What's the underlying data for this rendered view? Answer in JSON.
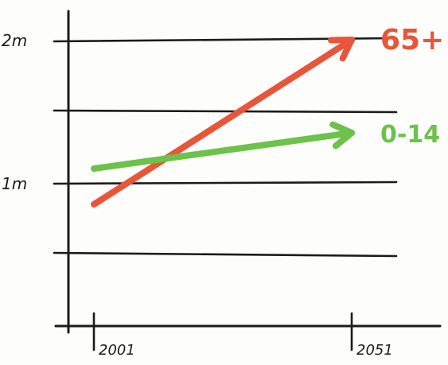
{
  "chart_data": {
    "type": "line",
    "title": "",
    "xlabel": "",
    "ylabel": "",
    "x_ticks": [
      "2001",
      "2051"
    ],
    "y_ticks": [
      "1m",
      "2m"
    ],
    "y_tick_values": [
      1000000,
      2000000
    ],
    "xlim": [
      2001,
      2051
    ],
    "ylim": [
      0,
      2000000
    ],
    "grid": true,
    "series": [
      {
        "name": "65+",
        "color": "#e8553a",
        "points": [
          {
            "x": 2001,
            "y": 850000
          },
          {
            "x": 2051,
            "y": 2000000
          }
        ]
      },
      {
        "name": "0-14",
        "color": "#6cc24a",
        "points": [
          {
            "x": 2001,
            "y": 1100000
          },
          {
            "x": 2051,
            "y": 1350000
          }
        ]
      }
    ]
  }
}
